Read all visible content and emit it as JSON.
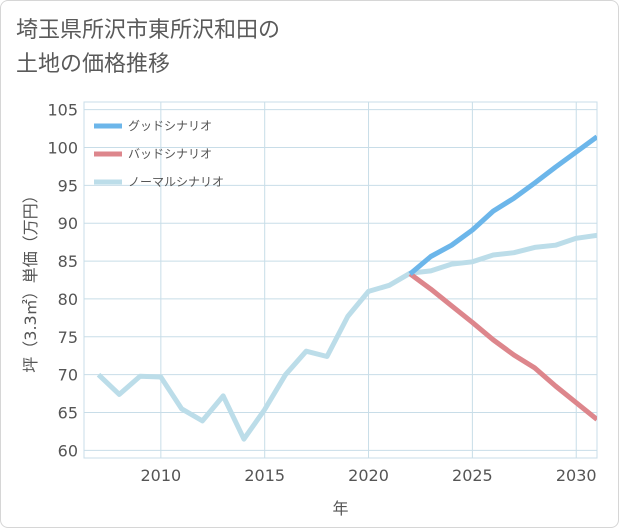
{
  "page": {
    "title_line1": "埼玉県所沢市東所沢和田の",
    "title_line2": "土地の価格推移"
  },
  "chart_data": {
    "type": "line",
    "xlabel": "年",
    "ylabel": "坪（3.3㎡）単価（万円）",
    "xlim": [
      2006.3,
      2031
    ],
    "ylim": [
      59,
      106
    ],
    "xticks": [
      2010,
      2015,
      2020,
      2025,
      2030
    ],
    "yticks": [
      60,
      65,
      70,
      75,
      80,
      85,
      90,
      95,
      100,
      105
    ],
    "grid": true,
    "legend_position": "top-left",
    "series": [
      {
        "name": "グッドシナリオ",
        "color": "#6cb6ea",
        "points": [
          [
            2022,
            83.3
          ],
          [
            2023,
            85.6
          ],
          [
            2024,
            87.1
          ],
          [
            2025,
            89.1
          ],
          [
            2026,
            91.6
          ],
          [
            2027,
            93.3
          ],
          [
            2028,
            95.3
          ],
          [
            2029,
            97.4
          ],
          [
            2030,
            99.4
          ],
          [
            2031,
            101.4
          ]
        ]
      },
      {
        "name": "バッドシナリオ",
        "color": "#dd868c",
        "points": [
          [
            2022,
            83.3
          ],
          [
            2023,
            81.3
          ],
          [
            2024,
            79.1
          ],
          [
            2025,
            76.9
          ],
          [
            2026,
            74.6
          ],
          [
            2027,
            72.6
          ],
          [
            2028,
            70.9
          ],
          [
            2029,
            68.5
          ],
          [
            2030,
            66.3
          ],
          [
            2031,
            64.1
          ]
        ]
      },
      {
        "name": "ノーマルシナリオ",
        "color": "#bcdde9",
        "points": [
          [
            2007,
            70.0
          ],
          [
            2008,
            67.4
          ],
          [
            2009,
            69.8
          ],
          [
            2010,
            69.7
          ],
          [
            2011,
            65.5
          ],
          [
            2012,
            63.9
          ],
          [
            2013,
            67.2
          ],
          [
            2014,
            61.5
          ],
          [
            2015,
            65.4
          ],
          [
            2016,
            70.0
          ],
          [
            2017,
            73.1
          ],
          [
            2018,
            72.4
          ],
          [
            2019,
            77.7
          ],
          [
            2020,
            81.0
          ],
          [
            2021,
            81.8
          ],
          [
            2022,
            83.4
          ],
          [
            2023,
            83.7
          ],
          [
            2024,
            84.6
          ],
          [
            2025,
            84.9
          ],
          [
            2026,
            85.8
          ],
          [
            2027,
            86.1
          ],
          [
            2028,
            86.8
          ],
          [
            2029,
            87.1
          ],
          [
            2030,
            88.0
          ],
          [
            2031,
            88.4
          ]
        ]
      }
    ]
  }
}
